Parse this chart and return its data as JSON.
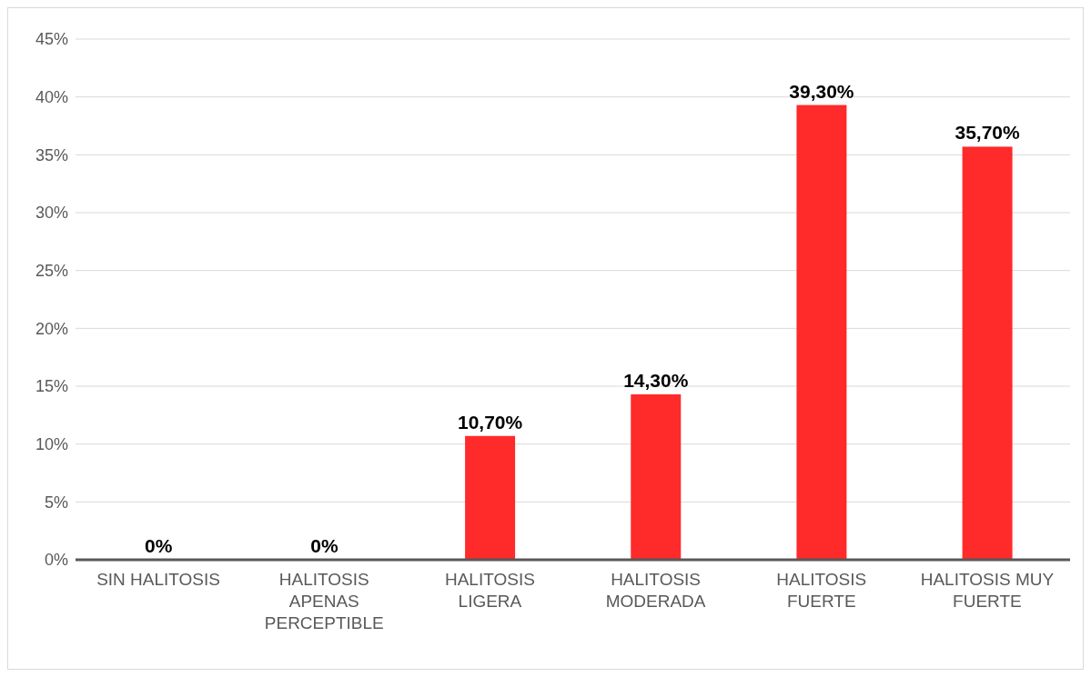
{
  "chart_data": {
    "type": "bar",
    "categories": [
      "SIN HALITOSIS",
      "HALITOSIS APENAS PERCEPTIBLE",
      "HALITOSIS LIGERA",
      "HALITOSIS MODERADA",
      "HALITOSIS FUERTE",
      "HALITOSIS MUY FUERTE"
    ],
    "values": [
      0,
      0,
      10.7,
      14.3,
      39.3,
      35.7
    ],
    "value_labels": [
      "0%",
      "0%",
      "10,70%",
      "14,30%",
      "39,30%",
      "35,70%"
    ],
    "color": "#ff2a2a",
    "ylim": [
      0,
      45
    ],
    "yticks": [
      {
        "value": 0,
        "label": "0%"
      },
      {
        "value": 5,
        "label": "5%"
      },
      {
        "value": 10,
        "label": "10%"
      },
      {
        "value": 15,
        "label": "15%"
      },
      {
        "value": 20,
        "label": "20%"
      },
      {
        "value": 25,
        "label": "25%"
      },
      {
        "value": 30,
        "label": "30%"
      },
      {
        "value": 35,
        "label": "35%"
      },
      {
        "value": 40,
        "label": "40%"
      },
      {
        "value": 45,
        "label": "45%"
      }
    ],
    "grid": "y"
  }
}
